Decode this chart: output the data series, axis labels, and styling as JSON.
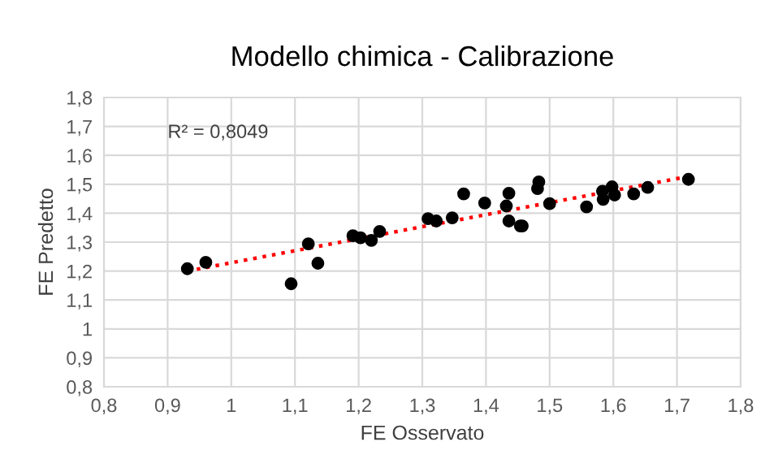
{
  "chart_data": {
    "type": "scatter",
    "title": "Modello chimica - Calibrazione",
    "xlabel": "FE Osservato",
    "ylabel": "FE Predetto",
    "annotations": [
      "R² = 0,8049"
    ],
    "series": [
      {
        "color": "#000000",
        "marker": "circle",
        "x": [
          0.931,
          0.96,
          1.094,
          1.121,
          1.136,
          1.191,
          1.203,
          1.22,
          1.233,
          1.309,
          1.322,
          1.347,
          1.365,
          1.398,
          1.432,
          1.436,
          1.436,
          1.454,
          1.457,
          1.481,
          1.483,
          1.5,
          1.558,
          1.583,
          1.584,
          1.598,
          1.602,
          1.632,
          1.654,
          1.718
        ],
        "values": [
          1.208,
          1.23,
          1.156,
          1.294,
          1.227,
          1.322,
          1.315,
          1.306,
          1.337,
          1.381,
          1.373,
          1.384,
          1.467,
          1.435,
          1.425,
          1.469,
          1.373,
          1.356,
          1.356,
          1.485,
          1.508,
          1.433,
          1.422,
          1.476,
          1.448,
          1.491,
          1.463,
          1.467,
          1.489,
          1.517
        ]
      },
      {
        "type": "line",
        "color": "#ff0000",
        "line_style": "dotted",
        "marker": "none",
        "x": [
          0.931,
          1.718
        ],
        "values": [
          1.2,
          1.527
        ]
      }
    ],
    "xlim": [
      0.8,
      1.8
    ],
    "ylim": [
      0.8,
      1.8
    ],
    "xticks": [
      {
        "value": 0.8,
        "label": "0,8"
      },
      {
        "value": 0.9,
        "label": "0,9"
      },
      {
        "value": 1,
        "label": "1"
      },
      {
        "value": 1.1,
        "label": "1,1"
      },
      {
        "value": 1.2,
        "label": "1,2"
      },
      {
        "value": 1.3,
        "label": "1,3"
      },
      {
        "value": 1.4,
        "label": "1,4"
      },
      {
        "value": 1.5,
        "label": "1,5"
      },
      {
        "value": 1.6,
        "label": "1,6"
      },
      {
        "value": 1.7,
        "label": "1,7"
      },
      {
        "value": 1.8,
        "label": "1,8"
      }
    ],
    "yticks": [
      {
        "value": 0.8,
        "label": "0,8"
      },
      {
        "value": 0.9,
        "label": "0,9"
      },
      {
        "value": 1,
        "label": "1"
      },
      {
        "value": 1.1,
        "label": "1,1"
      },
      {
        "value": 1.2,
        "label": "1,2"
      },
      {
        "value": 1.3,
        "label": "1,3"
      },
      {
        "value": 1.4,
        "label": "1,4"
      },
      {
        "value": 1.5,
        "label": "1,5"
      },
      {
        "value": 1.6,
        "label": "1,6"
      },
      {
        "value": 1.7,
        "label": "1,7"
      },
      {
        "value": 1.8,
        "label": "1,8"
      }
    ],
    "grid": true
  }
}
